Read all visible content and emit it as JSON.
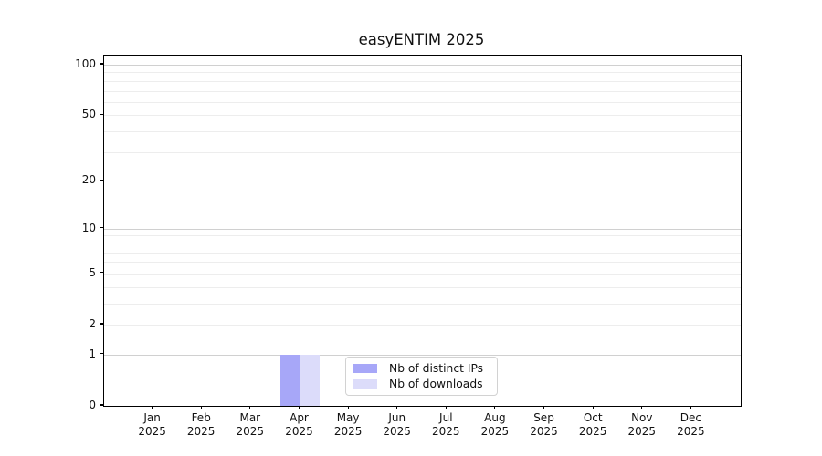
{
  "chart_data": {
    "type": "bar",
    "title": "easyENTIM 2025",
    "categories": [
      "Jan",
      "Feb",
      "Mar",
      "Apr",
      "May",
      "Jun",
      "Jul",
      "Aug",
      "Sep",
      "Oct",
      "Nov",
      "Dec"
    ],
    "year_label": "2025",
    "series": [
      {
        "name": "Nb of distinct IPs",
        "color": "#a7a7f8",
        "values": [
          0,
          0,
          0,
          1,
          0,
          0,
          0,
          0,
          0,
          0,
          0,
          0
        ]
      },
      {
        "name": "Nb of downloads",
        "color": "#dcdcfa",
        "values": [
          0,
          0,
          0,
          1,
          0,
          0,
          0,
          0,
          0,
          0,
          0,
          0
        ]
      }
    ],
    "xlabel": "",
    "ylabel": "",
    "yscale": "log1p",
    "ylim": [
      0,
      113
    ],
    "ytick_values": [
      0,
      1,
      2,
      5,
      10,
      20,
      50,
      100
    ],
    "ytick_labels": [
      "0",
      "1",
      "2",
      "5",
      "10",
      "20",
      "50",
      "100"
    ],
    "grid": true,
    "grid_minor_values": [
      2,
      3,
      4,
      5,
      6,
      7,
      8,
      9,
      20,
      30,
      40,
      50,
      60,
      70,
      80,
      90
    ],
    "grid_major_values": [
      1,
      10,
      100
    ],
    "legend_position": "lower center"
  },
  "colors": {
    "grid_minor": "#ededed",
    "grid_major": "#d0d0d0",
    "spine": "#000000",
    "text": "#111111",
    "legend_border": "#d2d2d2",
    "background": "#ffffff"
  }
}
